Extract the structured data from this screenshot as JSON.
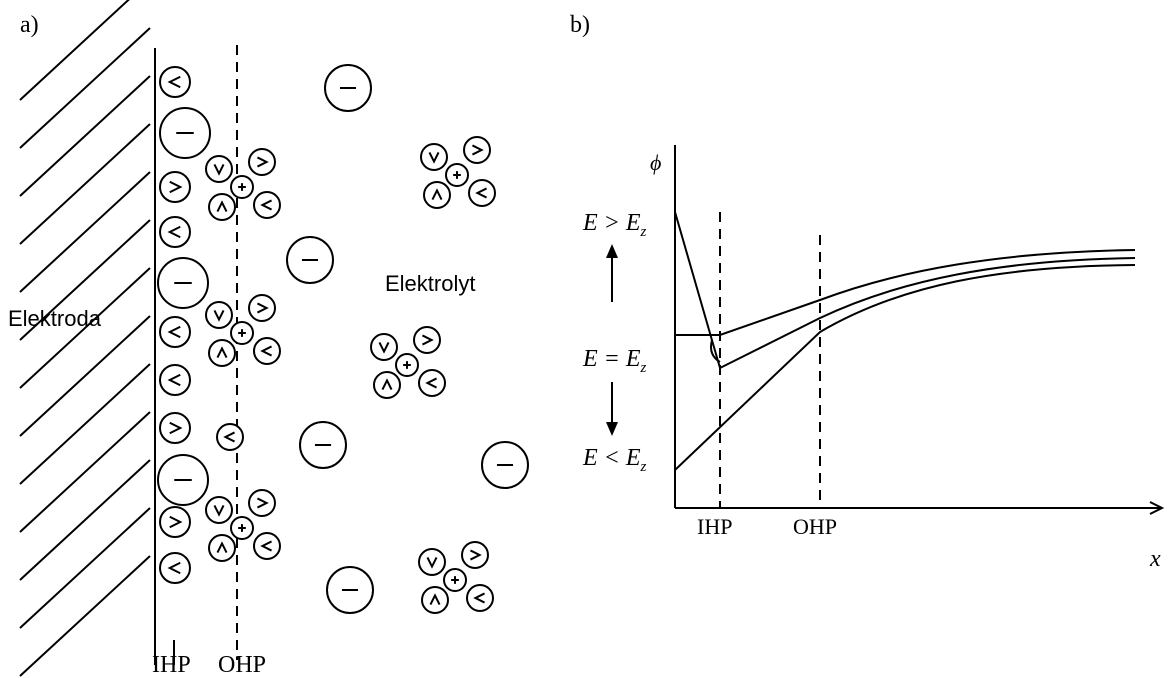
{
  "panel_a": {
    "label": "a)",
    "electrode": "Elektroda",
    "electrolyte": "Elektrolyt",
    "ihp": "IHP",
    "ohp": "OHP"
  },
  "panel_b": {
    "label": "b)",
    "y_axis": "ϕ",
    "x_axis": "x",
    "ihp": "IHP",
    "ohp": "OHP",
    "levels": [
      {
        "text": "E > E",
        "subscript": "z"
      },
      {
        "text": "E = E",
        "subscript": "z"
      },
      {
        "text": "E < E",
        "subscript": "z"
      }
    ]
  }
}
